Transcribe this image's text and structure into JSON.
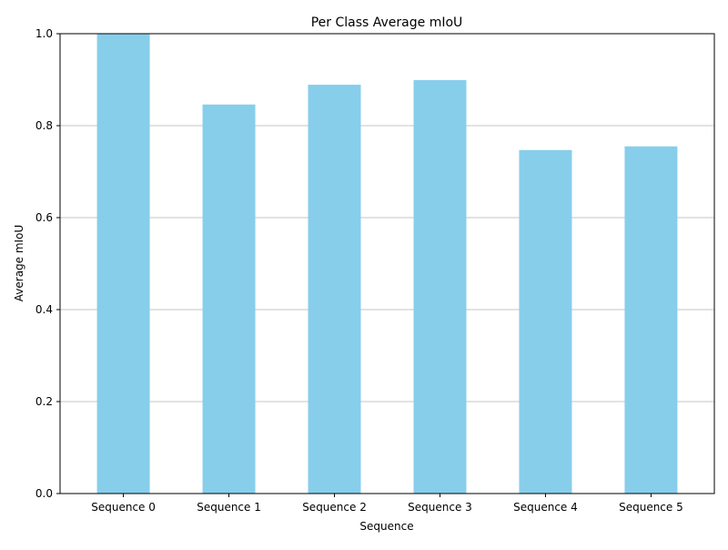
{
  "chart_data": {
    "type": "bar",
    "title": "Per Class Average mIoU",
    "xlabel": "Sequence",
    "ylabel": "Average mIoU",
    "categories": [
      "Sequence 0",
      "Sequence 1",
      "Sequence 2",
      "Sequence 3",
      "Sequence 4",
      "Sequence 5"
    ],
    "values": [
      1.0,
      0.846,
      0.889,
      0.899,
      0.747,
      0.755
    ],
    "ylim": [
      0,
      1.0
    ],
    "yticks": [
      0.0,
      0.2,
      0.4,
      0.6,
      0.8,
      1.0
    ],
    "ytick_labels": [
      "0.0",
      "0.2",
      "0.4",
      "0.6",
      "0.8",
      "1.0"
    ],
    "grid": "y-axis horizontal gridlines",
    "bar_color": "#87ceeb",
    "grid_color": "#b0b0b0",
    "axis_color": "#000000"
  }
}
